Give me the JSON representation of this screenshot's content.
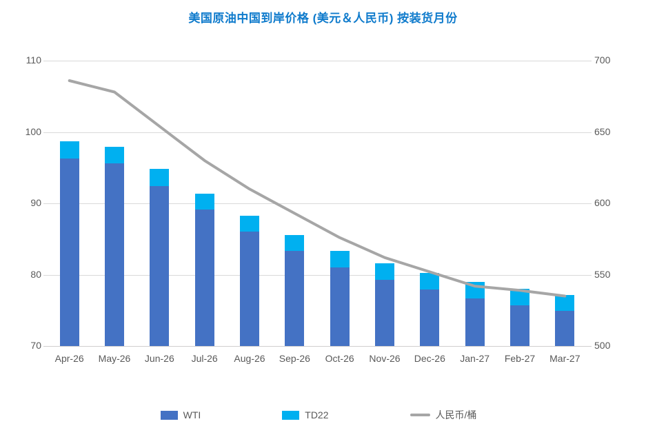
{
  "title": "美国原油中国到岸价格 (美元＆人民币) 按装货月份",
  "colors": {
    "title": "#0f7bcc",
    "wti_bar": "#4472c4",
    "td22_bar": "#00b0f0",
    "rmb_line": "#a6a6a6",
    "gridline": "#d9d9d9",
    "axis_text": "#595959"
  },
  "legend": {
    "wti_label": "WTI",
    "td22_label": "TD22",
    "rmb_label": "人民币/桶"
  },
  "chart_data": {
    "type": "bar",
    "subtype": "stacked-bars-with-secondary-axis-line",
    "title": "美国原油中国到岸价格 (美元＆人民币) 按装货月份",
    "categories": [
      "Apr-26",
      "May-26",
      "Jun-26",
      "Jul-26",
      "Aug-26",
      "Sep-26",
      "Oct-26",
      "Nov-26",
      "Dec-26",
      "Jan-27",
      "Feb-27",
      "Mar-27"
    ],
    "series": [
      {
        "name": "WTI",
        "kind": "bar-stack",
        "axis": "left",
        "values": [
          96.3,
          95.6,
          92.4,
          89.1,
          86.0,
          83.3,
          81.0,
          79.3,
          77.9,
          76.7,
          75.7,
          74.9
        ]
      },
      {
        "name": "TD22",
        "kind": "bar-stack",
        "axis": "left",
        "values": [
          2.4,
          2.3,
          2.4,
          2.3,
          2.3,
          2.3,
          2.3,
          2.3,
          2.3,
          2.3,
          2.3,
          2.3
        ]
      },
      {
        "name": "人民币/桶",
        "kind": "line",
        "axis": "right",
        "values": [
          686,
          678,
          654,
          630,
          610,
          593,
          576,
          562,
          552,
          542,
          539,
          535
        ]
      }
    ],
    "stacked_totals_usd": [
      98.7,
      97.9,
      94.8,
      91.4,
      88.3,
      85.6,
      83.3,
      81.6,
      80.2,
      79.0,
      78.0,
      77.2
    ],
    "left_axis": {
      "label": "",
      "min": 70,
      "max": 110,
      "ticks": [
        70,
        80,
        90,
        100,
        110
      ]
    },
    "right_axis": {
      "label": "",
      "min": 500,
      "max": 700,
      "ticks": [
        500,
        550,
        600,
        650,
        700
      ]
    },
    "grid": true,
    "legend_position": "bottom",
    "xlabel": "",
    "ylabel": ""
  }
}
